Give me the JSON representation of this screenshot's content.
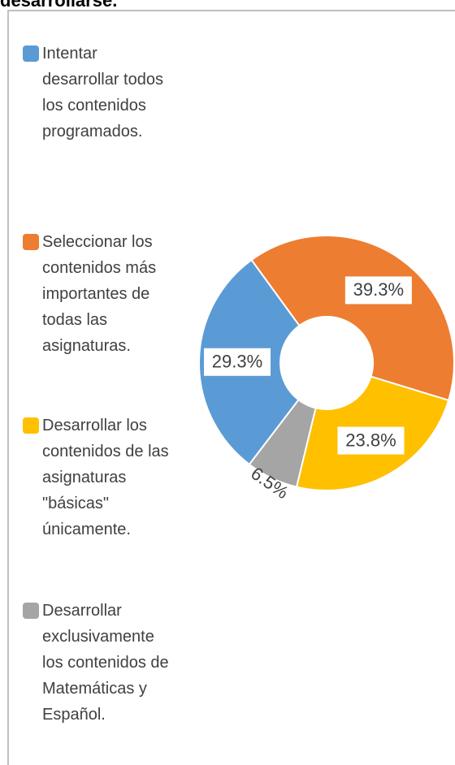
{
  "chart_data": {
    "type": "donut",
    "title": "desarrollarse.",
    "categories": [
      "Intentar desarrollar todos los contenidos programados.",
      "Seleccionar los contenidos más importantes de todas las asignaturas.",
      "Desarrollar los contenidos de las asignaturas \"básicas\" únicamente.",
      "Desarrollar exclusivamente los contenidos de Matemáticas y Español."
    ],
    "values": [
      29.3,
      39.3,
      23.8,
      6.5
    ],
    "value_labels": [
      "29.3%",
      "39.3%",
      "23.8%",
      "6.5%"
    ],
    "colors": [
      "#5b9bd5",
      "#ed7d31",
      "#ffc000",
      "#a5a5a5"
    ],
    "legend": "left"
  }
}
